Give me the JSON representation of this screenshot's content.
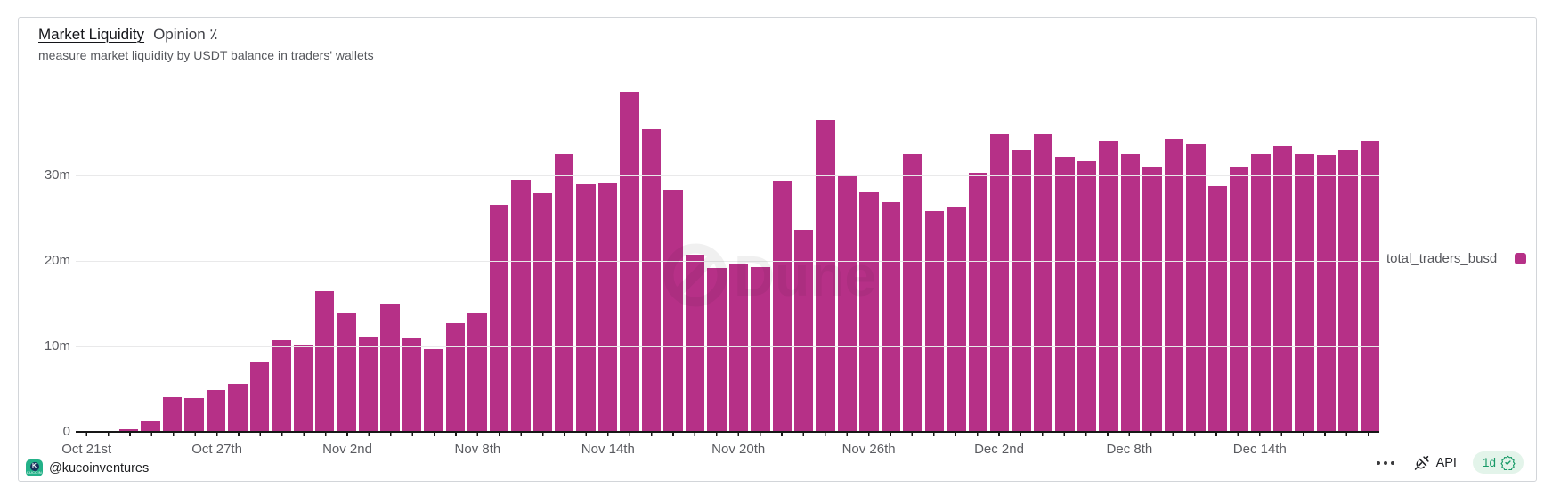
{
  "header": {
    "title": "Market Liquidity",
    "title_suffix": "Opinion ٪",
    "subtitle": "measure market liquidity by USDT balance in traders' wallets"
  },
  "chart_data": {
    "type": "bar",
    "title": "Market Liquidity",
    "xlabel": "",
    "ylabel": "USDT balance in traders' wallets",
    "y_max": 41.56,
    "y_unit": "m",
    "grid": true,
    "legend_position": "right",
    "y_ticks": [
      {
        "label": "0",
        "value": 0
      },
      {
        "label": "10m",
        "value": 10
      },
      {
        "label": "20m",
        "value": 20
      },
      {
        "label": "30m",
        "value": 30
      }
    ],
    "x_ticks": [
      {
        "label": "Oct 21st",
        "index": 0
      },
      {
        "label": "Oct 27th",
        "index": 6
      },
      {
        "label": "Nov 2nd",
        "index": 12
      },
      {
        "label": "Nov 8th",
        "index": 18
      },
      {
        "label": "Nov 14th",
        "index": 24
      },
      {
        "label": "Nov 20th",
        "index": 30
      },
      {
        "label": "Nov 26th",
        "index": 36
      },
      {
        "label": "Dec 2nd",
        "index": 42
      },
      {
        "label": "Dec 8th",
        "index": 48
      },
      {
        "label": "Dec 14th",
        "index": 54
      }
    ],
    "series": [
      {
        "name": "total_traders_busd",
        "color": "#b63087",
        "values": [
          0.05,
          0.12,
          0.3,
          1.2,
          4.1,
          4.0,
          4.9,
          5.6,
          8.1,
          10.7,
          10.2,
          16.5,
          13.9,
          11.0,
          15.0,
          10.9,
          9.7,
          12.7,
          13.9,
          26.6,
          29.5,
          27.9,
          32.5,
          29.0,
          29.2,
          39.8,
          35.4,
          28.3,
          20.7,
          19.2,
          19.6,
          19.3,
          29.4,
          23.6,
          36.5,
          30.1,
          28.0,
          26.9,
          32.5,
          25.8,
          26.3,
          30.3,
          34.8,
          33.0,
          34.8,
          32.2,
          31.7,
          34.1,
          32.5,
          31.0,
          34.3,
          33.6,
          28.7,
          31.0,
          32.5,
          33.4,
          32.5,
          32.4,
          33.0,
          34.1
        ]
      }
    ]
  },
  "watermark": {
    "text": "Dune"
  },
  "footer": {
    "author": "@kucoinventures",
    "api_label": "API",
    "refresh_badge": "1d"
  },
  "colors": {
    "bar": "#b63087",
    "kucoin_green": "#23b188",
    "badge_bg": "#e3f4ea",
    "badge_text": "#189a67",
    "axis_text": "#5a5b60",
    "gridline": "#e9e9ea"
  }
}
